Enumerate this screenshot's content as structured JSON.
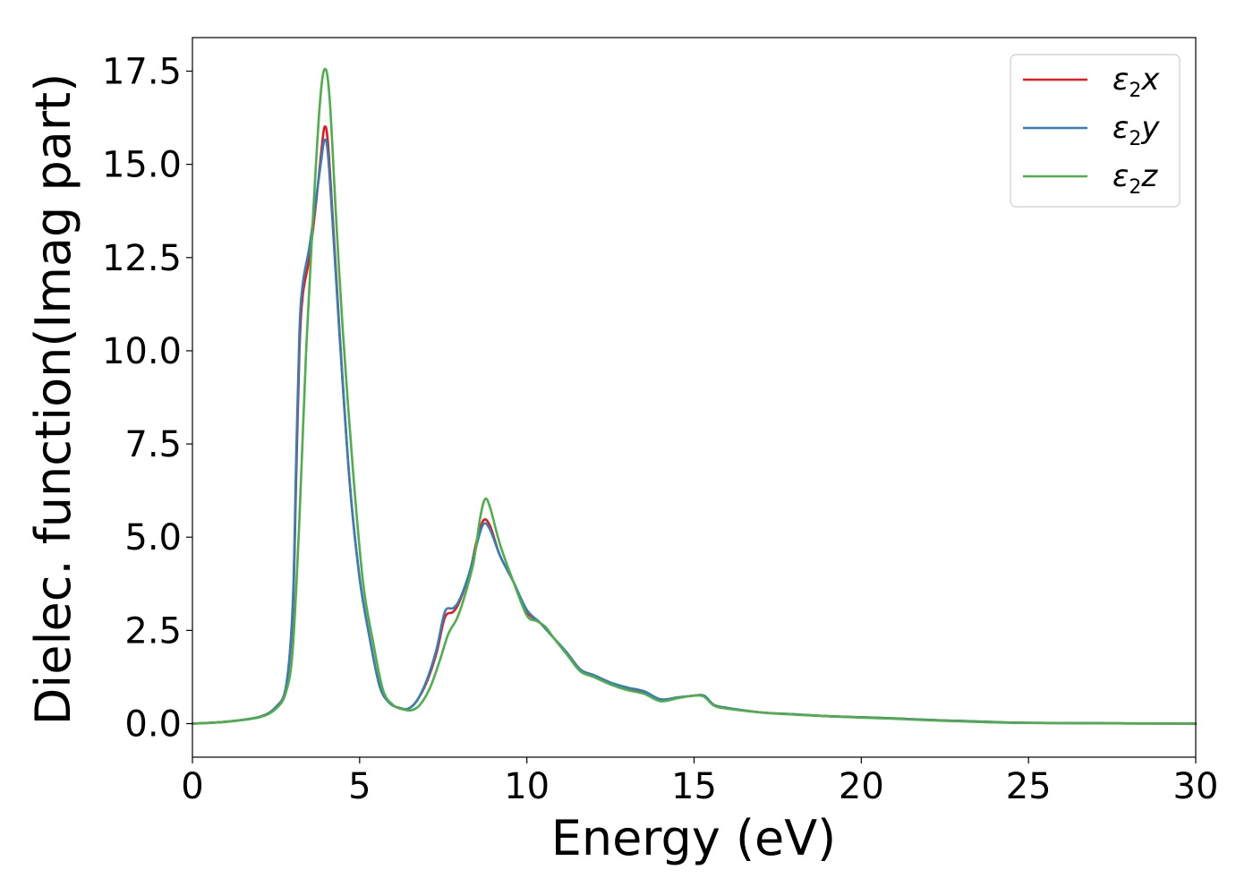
{
  "chart_data": {
    "type": "line",
    "xlabel": "Energy (eV)",
    "ylabel": "Dielec. function(Imag part)",
    "xlim": [
      0,
      30
    ],
    "ylim": [
      -0.9,
      18.4
    ],
    "xticks": [
      0,
      5,
      10,
      15,
      20,
      25,
      30
    ],
    "xtick_labels": [
      "0",
      "5",
      "10",
      "15",
      "20",
      "25",
      "30"
    ],
    "yticks": [
      0.0,
      2.5,
      5.0,
      7.5,
      10.0,
      12.5,
      15.0,
      17.5
    ],
    "ytick_labels": [
      "0.0",
      "2.5",
      "5.0",
      "7.5",
      "10.0",
      "12.5",
      "15.0",
      "17.5"
    ],
    "grid": false,
    "legend_position": "top-right",
    "series": [
      {
        "name": "ε2x",
        "legend_main": "ε",
        "legend_sub": "2",
        "legend_suffix": "x",
        "color": "#e41a1c",
        "points": [
          [
            0,
            0
          ],
          [
            1,
            0.05
          ],
          [
            2,
            0.18
          ],
          [
            2.5,
            0.45
          ],
          [
            2.8,
            1.0
          ],
          [
            3.0,
            3.0
          ],
          [
            3.1,
            6.5
          ],
          [
            3.2,
            10.0
          ],
          [
            3.3,
            11.5
          ],
          [
            3.5,
            12.5
          ],
          [
            3.7,
            14.0
          ],
          [
            3.85,
            15.3
          ],
          [
            3.95,
            16.0
          ],
          [
            4.05,
            15.6
          ],
          [
            4.2,
            13.5
          ],
          [
            4.4,
            10.5
          ],
          [
            4.7,
            6.5
          ],
          [
            5.0,
            3.9
          ],
          [
            5.3,
            2.3
          ],
          [
            5.6,
            1.0
          ],
          [
            5.9,
            0.55
          ],
          [
            6.2,
            0.42
          ],
          [
            6.45,
            0.4
          ],
          [
            6.7,
            0.6
          ],
          [
            7.0,
            1.1
          ],
          [
            7.3,
            1.9
          ],
          [
            7.55,
            2.85
          ],
          [
            7.8,
            3.0
          ],
          [
            8.0,
            3.3
          ],
          [
            8.3,
            4.1
          ],
          [
            8.5,
            4.9
          ],
          [
            8.7,
            5.45
          ],
          [
            8.9,
            5.3
          ],
          [
            9.2,
            4.5
          ],
          [
            9.6,
            3.8
          ],
          [
            10.0,
            3.0
          ],
          [
            10.4,
            2.7
          ],
          [
            10.8,
            2.3
          ],
          [
            11.2,
            1.9
          ],
          [
            11.6,
            1.45
          ],
          [
            12.0,
            1.3
          ],
          [
            12.5,
            1.1
          ],
          [
            13.0,
            0.95
          ],
          [
            13.5,
            0.85
          ],
          [
            14.0,
            0.65
          ],
          [
            14.5,
            0.7
          ],
          [
            15.0,
            0.75
          ],
          [
            15.3,
            0.75
          ],
          [
            15.6,
            0.5
          ],
          [
            16.0,
            0.42
          ],
          [
            17.0,
            0.3
          ],
          [
            18.0,
            0.25
          ],
          [
            19.0,
            0.2
          ],
          [
            20.0,
            0.17
          ],
          [
            21.0,
            0.14
          ],
          [
            22.0,
            0.1
          ],
          [
            23.0,
            0.07
          ],
          [
            24.0,
            0.04
          ],
          [
            25.0,
            0.02
          ],
          [
            27.0,
            0.01
          ],
          [
            30.0,
            0.0
          ]
        ]
      },
      {
        "name": "ε2y",
        "legend_main": "ε",
        "legend_sub": "2",
        "legend_suffix": "y",
        "color": "#377eb8",
        "points": [
          [
            0,
            0
          ],
          [
            1,
            0.05
          ],
          [
            2,
            0.18
          ],
          [
            2.5,
            0.45
          ],
          [
            2.8,
            1.0
          ],
          [
            3.0,
            3.2
          ],
          [
            3.1,
            7.0
          ],
          [
            3.2,
            10.5
          ],
          [
            3.3,
            11.8
          ],
          [
            3.5,
            12.8
          ],
          [
            3.7,
            14.1
          ],
          [
            3.85,
            15.1
          ],
          [
            3.95,
            15.65
          ],
          [
            4.05,
            15.3
          ],
          [
            4.2,
            13.3
          ],
          [
            4.4,
            10.4
          ],
          [
            4.7,
            6.5
          ],
          [
            5.0,
            3.9
          ],
          [
            5.3,
            2.3
          ],
          [
            5.6,
            1.0
          ],
          [
            5.9,
            0.55
          ],
          [
            6.2,
            0.42
          ],
          [
            6.45,
            0.4
          ],
          [
            6.7,
            0.6
          ],
          [
            7.0,
            1.15
          ],
          [
            7.3,
            2.0
          ],
          [
            7.55,
            3.0
          ],
          [
            7.8,
            3.1
          ],
          [
            8.0,
            3.35
          ],
          [
            8.3,
            4.1
          ],
          [
            8.5,
            4.8
          ],
          [
            8.7,
            5.35
          ],
          [
            8.9,
            5.2
          ],
          [
            9.2,
            4.5
          ],
          [
            9.6,
            3.8
          ],
          [
            10.0,
            3.05
          ],
          [
            10.4,
            2.7
          ],
          [
            10.8,
            2.3
          ],
          [
            11.2,
            1.9
          ],
          [
            11.6,
            1.45
          ],
          [
            12.0,
            1.3
          ],
          [
            12.5,
            1.1
          ],
          [
            13.0,
            0.97
          ],
          [
            13.5,
            0.87
          ],
          [
            14.0,
            0.65
          ],
          [
            14.5,
            0.7
          ],
          [
            15.0,
            0.75
          ],
          [
            15.3,
            0.75
          ],
          [
            15.6,
            0.5
          ],
          [
            16.0,
            0.42
          ],
          [
            17.0,
            0.3
          ],
          [
            18.0,
            0.25
          ],
          [
            19.0,
            0.2
          ],
          [
            20.0,
            0.17
          ],
          [
            21.0,
            0.14
          ],
          [
            22.0,
            0.1
          ],
          [
            23.0,
            0.07
          ],
          [
            24.0,
            0.04
          ],
          [
            25.0,
            0.02
          ],
          [
            27.0,
            0.01
          ],
          [
            30.0,
            0.0
          ]
        ]
      },
      {
        "name": "ε2z",
        "legend_main": "ε",
        "legend_sub": "2",
        "legend_suffix": "z",
        "color": "#4daf4a",
        "points": [
          [
            0,
            0
          ],
          [
            1,
            0.05
          ],
          [
            2,
            0.17
          ],
          [
            2.5,
            0.4
          ],
          [
            2.8,
            0.85
          ],
          [
            3.0,
            2.0
          ],
          [
            3.2,
            5.5
          ],
          [
            3.4,
            10.0
          ],
          [
            3.6,
            13.5
          ],
          [
            3.8,
            16.5
          ],
          [
            3.95,
            17.55
          ],
          [
            4.1,
            16.8
          ],
          [
            4.3,
            13.5
          ],
          [
            4.5,
            10.5
          ],
          [
            4.8,
            6.8
          ],
          [
            5.1,
            3.8
          ],
          [
            5.4,
            2.2
          ],
          [
            5.7,
            0.9
          ],
          [
            6.0,
            0.5
          ],
          [
            6.3,
            0.38
          ],
          [
            6.55,
            0.36
          ],
          [
            6.8,
            0.5
          ],
          [
            7.1,
            0.95
          ],
          [
            7.4,
            1.7
          ],
          [
            7.65,
            2.4
          ],
          [
            7.9,
            2.8
          ],
          [
            8.1,
            3.3
          ],
          [
            8.4,
            4.3
          ],
          [
            8.6,
            5.5
          ],
          [
            8.75,
            6.02
          ],
          [
            8.9,
            5.8
          ],
          [
            9.2,
            4.8
          ],
          [
            9.6,
            3.8
          ],
          [
            10.0,
            2.9
          ],
          [
            10.3,
            2.75
          ],
          [
            10.55,
            2.6
          ],
          [
            10.8,
            2.3
          ],
          [
            11.2,
            1.85
          ],
          [
            11.6,
            1.4
          ],
          [
            12.0,
            1.25
          ],
          [
            12.5,
            1.05
          ],
          [
            13.0,
            0.9
          ],
          [
            13.5,
            0.8
          ],
          [
            14.0,
            0.6
          ],
          [
            14.5,
            0.68
          ],
          [
            15.0,
            0.75
          ],
          [
            15.3,
            0.72
          ],
          [
            15.6,
            0.48
          ],
          [
            16.0,
            0.4
          ],
          [
            17.0,
            0.3
          ],
          [
            18.0,
            0.24
          ],
          [
            19.0,
            0.2
          ],
          [
            20.0,
            0.16
          ],
          [
            21.0,
            0.13
          ],
          [
            22.0,
            0.09
          ],
          [
            23.0,
            0.06
          ],
          [
            24.0,
            0.03
          ],
          [
            25.0,
            0.02
          ],
          [
            27.0,
            0.01
          ],
          [
            30.0,
            0.0
          ]
        ]
      }
    ]
  }
}
